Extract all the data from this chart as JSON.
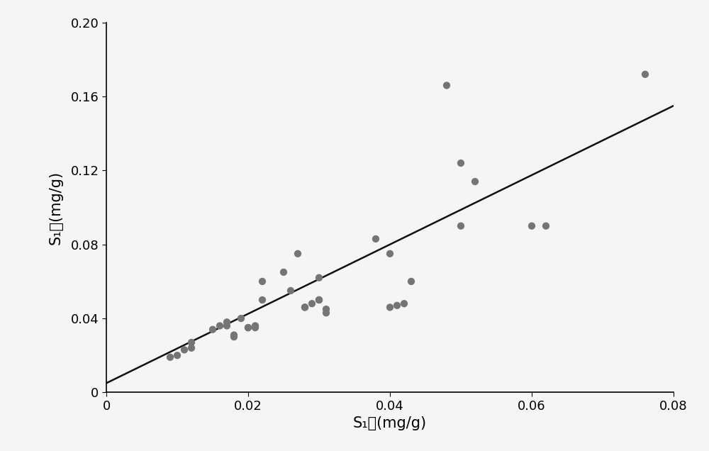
{
  "x_points": [
    0.009,
    0.01,
    0.011,
    0.012,
    0.012,
    0.015,
    0.016,
    0.017,
    0.017,
    0.018,
    0.018,
    0.019,
    0.02,
    0.02,
    0.021,
    0.021,
    0.022,
    0.022,
    0.025,
    0.026,
    0.027,
    0.028,
    0.028,
    0.029,
    0.03,
    0.03,
    0.03,
    0.031,
    0.031,
    0.038,
    0.04,
    0.04,
    0.041,
    0.042,
    0.043,
    0.048,
    0.05,
    0.05,
    0.052,
    0.06,
    0.062,
    0.076
  ],
  "y_points": [
    0.019,
    0.02,
    0.023,
    0.024,
    0.027,
    0.034,
    0.036,
    0.036,
    0.038,
    0.03,
    0.031,
    0.04,
    0.035,
    0.035,
    0.035,
    0.036,
    0.06,
    0.05,
    0.065,
    0.055,
    0.075,
    0.046,
    0.046,
    0.048,
    0.05,
    0.05,
    0.062,
    0.043,
    0.045,
    0.083,
    0.075,
    0.046,
    0.047,
    0.048,
    0.06,
    0.166,
    0.09,
    0.124,
    0.114,
    0.09,
    0.09,
    0.172
  ],
  "line_x": [
    0.0,
    0.08
  ],
  "line_y": [
    0.005,
    0.155
  ],
  "dot_color": "#757575",
  "line_color": "#111111",
  "xlabel": "S₁测(mg/g)",
  "ylabel": "S₁校(mg/g)",
  "xlim": [
    0,
    0.08
  ],
  "ylim": [
    0,
    0.2
  ],
  "xticks": [
    0,
    0.02,
    0.04,
    0.06,
    0.08
  ],
  "yticks": [
    0,
    0.04,
    0.08,
    0.12,
    0.16,
    0.2
  ],
  "dot_size": 55,
  "line_width": 1.8,
  "bg_color": "#f5f5f5",
  "xlabel_fontsize": 15,
  "ylabel_fontsize": 15,
  "tick_fontsize": 13
}
